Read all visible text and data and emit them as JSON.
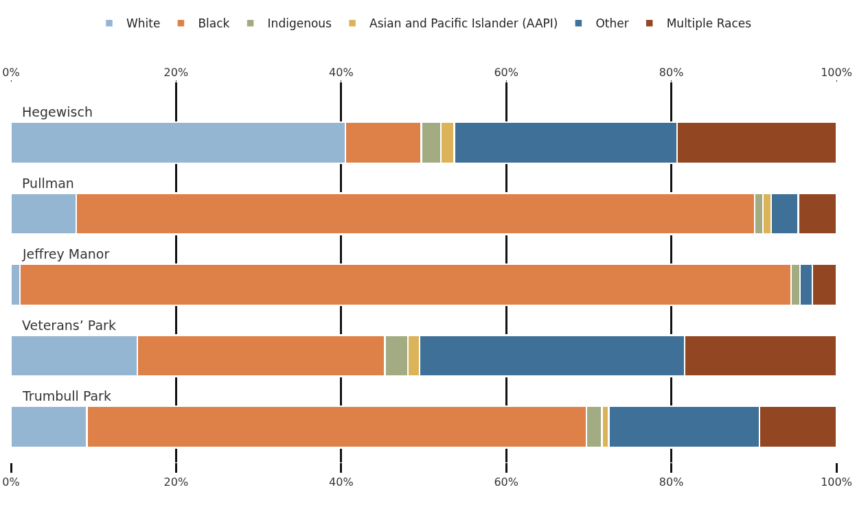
{
  "chart_data": {
    "type": "bar",
    "orientation": "horizontal",
    "stacked": true,
    "categories": [
      "Hegewisch",
      "Pullman",
      "Jeffrey Manor",
      "Veterans’ Park",
      "Trumbull Park"
    ],
    "series": [
      {
        "name": "White",
        "color": "#94b6d3",
        "values": [
          40.5,
          7.9,
          1.1,
          15.3,
          9.2
        ]
      },
      {
        "name": "Black",
        "color": "#de8148",
        "values": [
          9.2,
          82.2,
          93.4,
          30.0,
          60.5
        ]
      },
      {
        "name": "Indigenous",
        "color": "#a3ab82",
        "values": [
          2.4,
          1.0,
          1.1,
          2.8,
          1.9
        ]
      },
      {
        "name": "Asian and Pacific Islander (AAPI)",
        "color": "#dbb45a",
        "values": [
          1.6,
          1.0,
          0,
          1.4,
          0.8
        ]
      },
      {
        "name": "Other",
        "color": "#3f7198",
        "values": [
          27.0,
          3.3,
          1.5,
          32.1,
          18.3
        ]
      },
      {
        "name": "Multiple Races",
        "color": "#934622",
        "values": [
          19.3,
          4.6,
          2.9,
          18.4,
          9.3
        ]
      }
    ],
    "xlim": [
      0,
      100
    ],
    "xticks": [
      {
        "value": 0,
        "label": "0%"
      },
      {
        "value": 20,
        "label": "20%"
      },
      {
        "value": 40,
        "label": "40%"
      },
      {
        "value": 60,
        "label": "60%"
      },
      {
        "value": 80,
        "label": "80%"
      },
      {
        "value": 100,
        "label": "100%"
      }
    ],
    "x2lim": [
      0,
      100
    ],
    "x2ticks": [
      {
        "value": 0,
        "label": "0%"
      },
      {
        "value": 20,
        "label": "20%"
      },
      {
        "value": 40,
        "label": "40%"
      },
      {
        "value": 60,
        "label": "60%"
      },
      {
        "value": 80,
        "label": "80%"
      },
      {
        "value": 100,
        "label": "100%"
      }
    ],
    "grid": "x",
    "legend": "top"
  }
}
